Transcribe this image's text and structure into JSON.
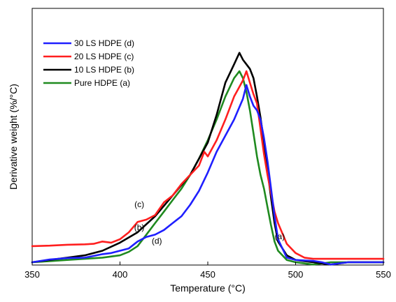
{
  "chart_data": {
    "type": "line",
    "title": "",
    "xlabel": "Temperature (°C)",
    "ylabel": "Derivative weight (%/°C)",
    "xlim": [
      350,
      550
    ],
    "ylim": [
      0,
      1
    ],
    "xticks": [
      350,
      400,
      450,
      500,
      550
    ],
    "yticks_labeled": false,
    "grid": false,
    "legend_position": "top-left",
    "series": [
      {
        "name": "30 LS HDPE (d)",
        "color": "#1f1fff",
        "x": [
          350,
          360,
          370,
          380,
          390,
          395,
          400,
          405,
          410,
          415,
          420,
          425,
          430,
          435,
          440,
          445,
          450,
          455,
          460,
          465,
          470,
          472,
          474,
          476,
          478,
          480,
          482,
          484,
          486,
          488,
          490,
          495,
          500,
          505,
          510,
          515,
          520,
          525,
          530,
          540,
          550
        ],
        "y": [
          0.0,
          0.012,
          0.018,
          0.02,
          0.035,
          0.04,
          0.05,
          0.06,
          0.09,
          0.11,
          0.12,
          0.14,
          0.17,
          0.2,
          0.25,
          0.31,
          0.39,
          0.48,
          0.55,
          0.62,
          0.71,
          0.77,
          0.72,
          0.68,
          0.66,
          0.62,
          0.54,
          0.44,
          0.32,
          0.2,
          0.1,
          0.02,
          0.01,
          0.008,
          0.006,
          0.0,
          -0.01,
          -0.005,
          0.0,
          0.0,
          0.0
        ]
      },
      {
        "name": "20 LS HDPE (c)",
        "color": "#ff1f1f",
        "x": [
          350,
          360,
          370,
          380,
          385,
          390,
          395,
          400,
          405,
          410,
          415,
          420,
          425,
          430,
          435,
          440,
          445,
          448,
          450,
          455,
          460,
          465,
          470,
          472,
          474,
          476,
          478,
          480,
          482,
          484,
          486,
          488,
          490,
          495,
          500,
          505,
          510,
          520,
          530,
          540,
          550
        ],
        "y": [
          0.07,
          0.072,
          0.076,
          0.078,
          0.08,
          0.09,
          0.085,
          0.1,
          0.13,
          0.175,
          0.185,
          0.205,
          0.26,
          0.29,
          0.34,
          0.38,
          0.42,
          0.48,
          0.46,
          0.53,
          0.62,
          0.72,
          0.79,
          0.83,
          0.78,
          0.73,
          0.69,
          0.58,
          0.47,
          0.38,
          0.3,
          0.22,
          0.17,
          0.08,
          0.04,
          0.02,
          0.015,
          0.015,
          0.015,
          0.015,
          0.015
        ]
      },
      {
        "name": "10 LS HDPE (b)",
        "color": "#000000",
        "x": [
          350,
          360,
          370,
          380,
          390,
          400,
          410,
          420,
          430,
          440,
          450,
          455,
          460,
          465,
          468,
          470,
          472,
          474,
          476,
          478,
          480,
          482,
          484,
          486,
          488,
          490,
          495,
          500,
          505,
          510,
          520,
          530,
          540,
          550
        ],
        "y": [
          0.0,
          0.01,
          0.02,
          0.03,
          0.05,
          0.085,
          0.13,
          0.2,
          0.29,
          0.38,
          0.52,
          0.64,
          0.78,
          0.86,
          0.91,
          0.88,
          0.86,
          0.84,
          0.8,
          0.72,
          0.63,
          0.52,
          0.4,
          0.28,
          0.17,
          0.09,
          0.03,
          0.01,
          0.005,
          0.0,
          -0.01,
          0.0,
          0.0,
          0.0
        ]
      },
      {
        "name": "Pure HDPE (a)",
        "color": "#1f8a1f",
        "x": [
          350,
          360,
          370,
          380,
          390,
          400,
          405,
          410,
          415,
          420,
          425,
          430,
          435,
          440,
          445,
          450,
          455,
          460,
          465,
          468,
          470,
          472,
          474,
          476,
          478,
          480,
          482,
          484,
          486,
          488,
          490,
          495,
          500,
          510,
          520,
          530,
          540,
          550
        ],
        "y": [
          0.0,
          0.005,
          0.01,
          0.015,
          0.02,
          0.03,
          0.045,
          0.07,
          0.12,
          0.17,
          0.22,
          0.27,
          0.32,
          0.38,
          0.45,
          0.53,
          0.62,
          0.72,
          0.8,
          0.83,
          0.8,
          0.74,
          0.66,
          0.56,
          0.46,
          0.38,
          0.32,
          0.24,
          0.16,
          0.09,
          0.05,
          0.01,
          0.0,
          -0.01,
          0.0,
          0.0,
          0.0,
          0.0
        ]
      }
    ],
    "annotations": [
      {
        "text": "(c)",
        "x": 411,
        "y": 0.24
      },
      {
        "text": "(b)",
        "x": 411,
        "y": 0.14
      },
      {
        "text": "(d)",
        "x": 421,
        "y": 0.08
      },
      {
        "text": "(a)",
        "x": 491,
        "y": 0.1
      }
    ]
  }
}
